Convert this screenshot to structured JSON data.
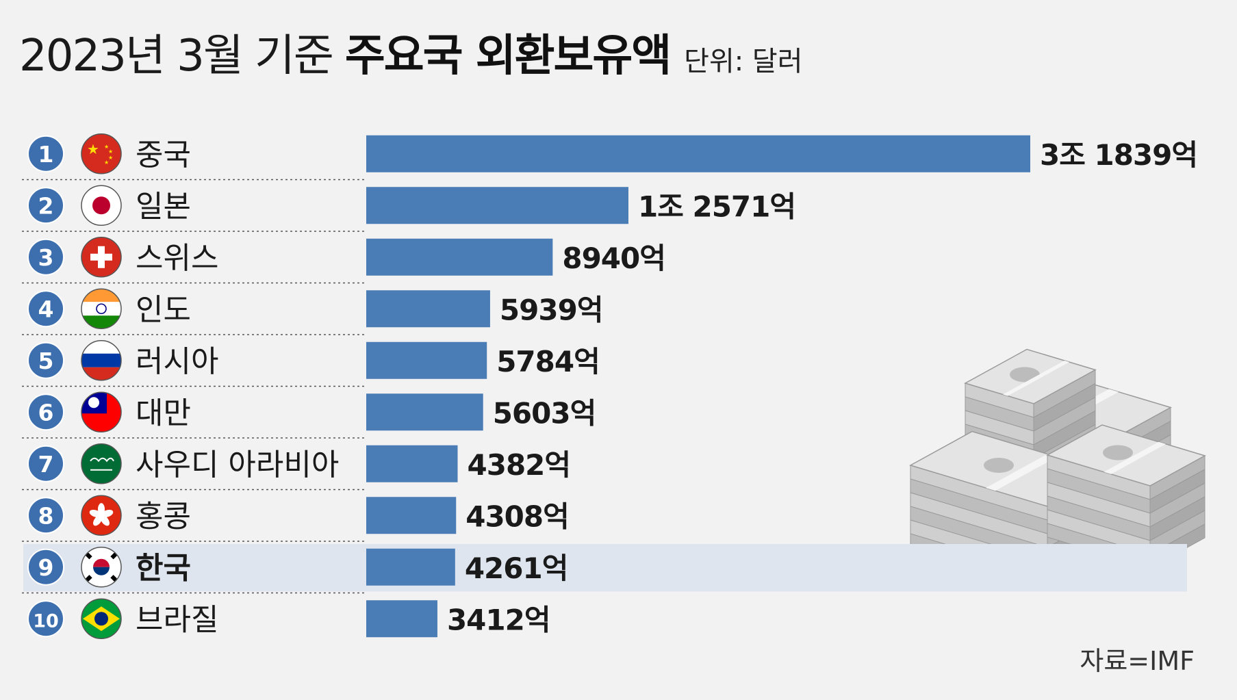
{
  "title": {
    "light": "2023년 3월 기준",
    "bold": "주요국 외환보유액",
    "unit": "단위: 달러"
  },
  "source": "자료=IMF",
  "colors": {
    "background": "#f2f2f2",
    "bar": "#4a7cb5",
    "rank_circle": "#3d6fae",
    "highlight_row": "#dfe5ee",
    "divider": "#555555",
    "text": "#1a1a1a"
  },
  "chart_data": {
    "type": "bar",
    "orientation": "horizontal",
    "title": "2023년 3월 기준 주요국 외환보유액",
    "unit": "달러",
    "categories": [
      "중국",
      "일본",
      "스위스",
      "인도",
      "러시아",
      "대만",
      "사우디 아라비아",
      "홍콩",
      "한국",
      "브라질"
    ],
    "ranks": [
      "1",
      "2",
      "3",
      "4",
      "5",
      "6",
      "7",
      "8",
      "9",
      "10"
    ],
    "values": [
      31839,
      12571,
      8940,
      5939,
      5784,
      5603,
      4382,
      4308,
      4261,
      3412
    ],
    "value_unit": "억 달러",
    "data_labels": [
      "3조 1839억",
      "1조 2571억",
      "8940억",
      "5939억",
      "5784억",
      "5603억",
      "4382억",
      "4308억",
      "4261억",
      "3412억"
    ],
    "flag_icons": [
      "china-flag-icon",
      "japan-flag-icon",
      "switzerland-flag-icon",
      "india-flag-icon",
      "russia-flag-icon",
      "taiwan-flag-icon",
      "saudi-arabia-flag-icon",
      "hong-kong-flag-icon",
      "south-korea-flag-icon",
      "brazil-flag-icon"
    ],
    "highlighted_category": "한국",
    "xlim": [
      0,
      31839
    ],
    "grid": false,
    "legend": "none"
  }
}
